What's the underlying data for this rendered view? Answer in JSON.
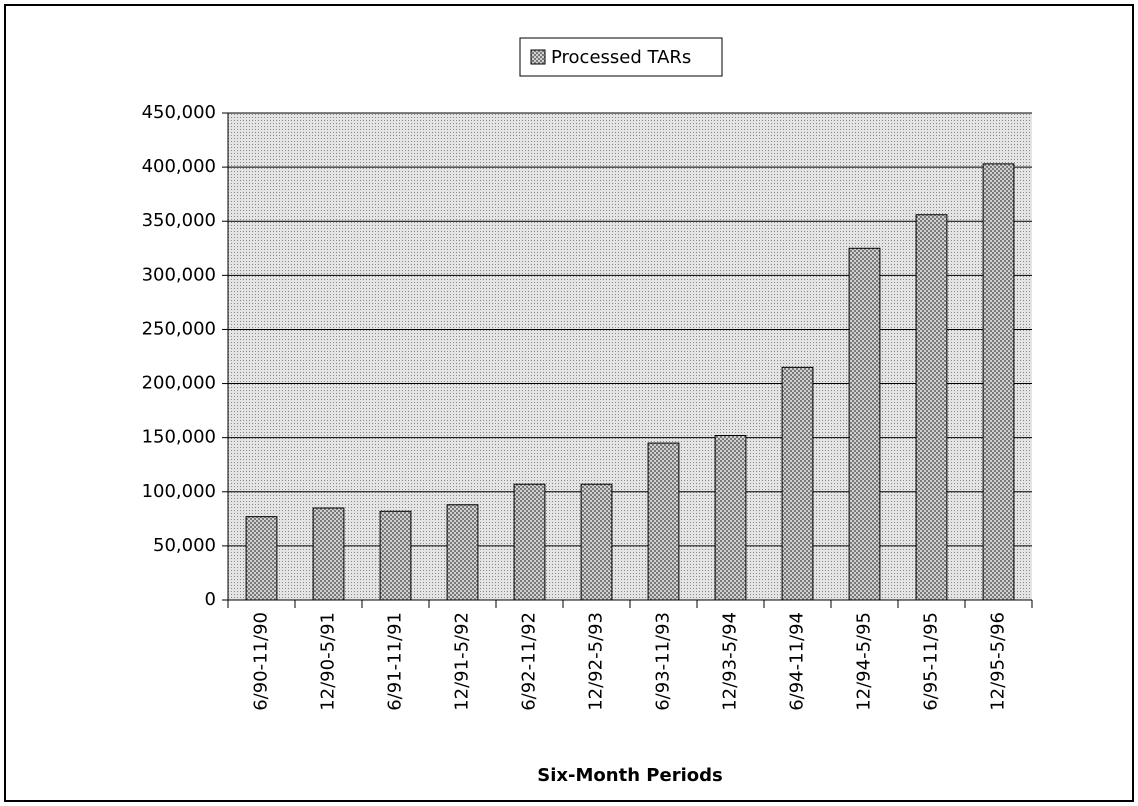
{
  "chart_data": {
    "type": "bar",
    "x_label": "Six-Month Periods",
    "categories": [
      "6/90-11/90",
      "12/90-5/91",
      "6/91-11/91",
      "12/91-5/92",
      "6/92-11/92",
      "12/92-5/93",
      "6/93-11/93",
      "12/93-5/94",
      "6/94-11/94",
      "12/94-5/95",
      "6/95-11/95",
      "12/95-5/96"
    ],
    "series": [
      {
        "name": "Processed TARs",
        "color": "#7a7a7a",
        "values": [
          77000,
          85000,
          82000,
          88000,
          107000,
          107000,
          145000,
          152000,
          215000,
          325000,
          356000,
          403000
        ]
      }
    ],
    "ylim": [
      0,
      450000
    ],
    "yticks": [
      0,
      {
        "value": 50000,
        "label": "50,000"
      },
      {
        "value": 100000,
        "label": "100,000"
      },
      {
        "value": 150000,
        "label": "150,000"
      },
      {
        "value": 200000,
        "label": "200,000"
      },
      {
        "value": 250000,
        "label": "250,000"
      },
      {
        "value": 300000,
        "label": "300,000"
      },
      {
        "value": 350000,
        "label": "350,000"
      },
      {
        "value": 400000,
        "label": "400,000"
      },
      {
        "value": 450000,
        "label": "450,000"
      }
    ],
    "grid": true,
    "legend": "top"
  }
}
